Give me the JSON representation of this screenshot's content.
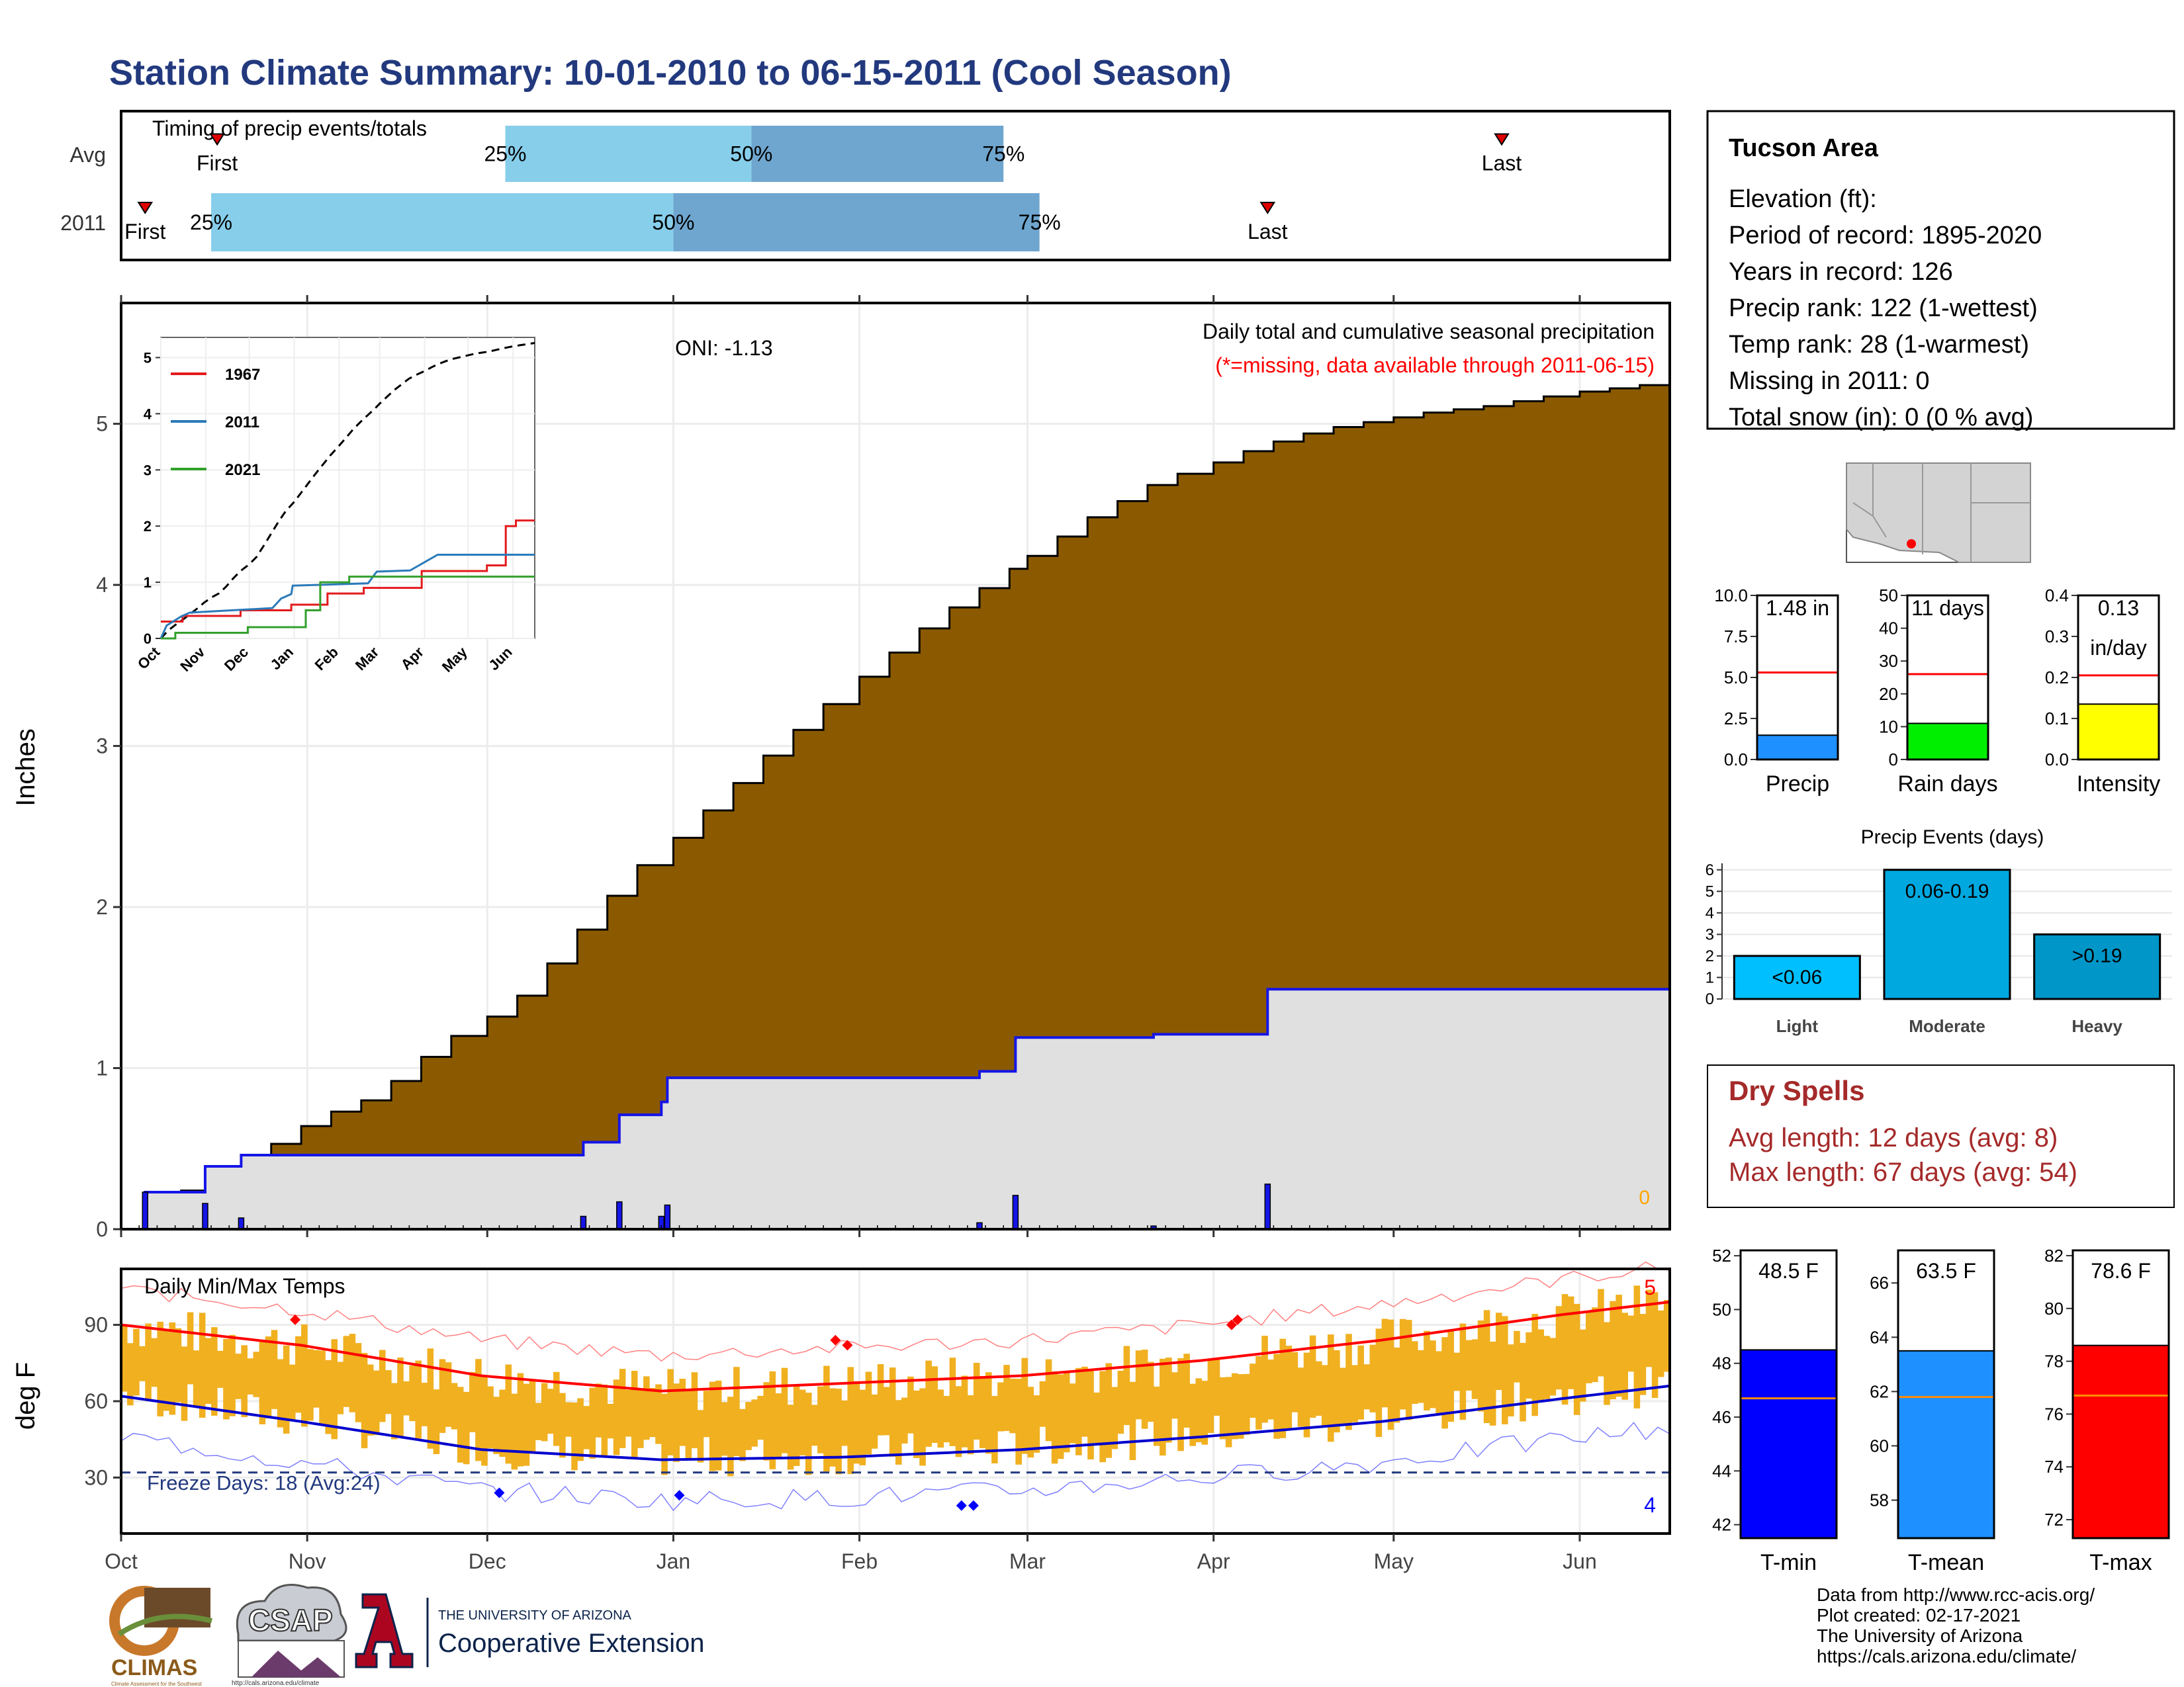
{
  "title": "Station Climate Summary: 10-01-2010 to 06-15-2011 (Cool Season)",
  "colors": {
    "title": "#22397e",
    "brown": "#8b5a00",
    "grey_fill": "#e0e0e0",
    "blue": "#1515e8",
    "light_blue": "#87ceeb",
    "mid_blue": "#6fa6cf",
    "red": "#ff0000",
    "orange": "#f0b020",
    "dry_red": "#a52a2a"
  },
  "timing": {
    "label": "Timing of precip events/totals",
    "rows": [
      {
        "name": "Avg",
        "first": "First",
        "last": "Last",
        "p25": "25%",
        "p50": "50%",
        "p75": "75%",
        "first_day": 16,
        "last_day": 230,
        "p25_day": 64,
        "p50_day": 105,
        "p75_day": 147
      },
      {
        "name": "2011",
        "first": "First",
        "last": "Last",
        "p25": "25%",
        "p50": "50%",
        "p75": "75%",
        "first_day": 4,
        "last_day": 191,
        "p25_day": 15,
        "p50_day": 92,
        "p75_day": 153
      }
    ]
  },
  "month_ticks": [
    "Oct",
    "Nov",
    "Dec",
    "Jan",
    "Feb",
    "Mar",
    "Apr",
    "May",
    "Jun"
  ],
  "month_days": [
    0,
    31,
    61,
    92,
    123,
    151,
    182,
    212,
    243
  ],
  "total_days": 258,
  "main": {
    "ylabel": "Inches",
    "yticks": [
      "0",
      "1",
      "2",
      "3",
      "4",
      "5"
    ],
    "ymax": 5.75,
    "oni": "ONI: -1.13",
    "caption": "Daily total and cumulative seasonal precipitation",
    "missing_note": "(*=missing, data available through 2011-06-15)",
    "missing_count": "0",
    "avg_cum_day": [
      0,
      5,
      10,
      15,
      20,
      25,
      30,
      35,
      40,
      45,
      50,
      55,
      61,
      66,
      71,
      76,
      81,
      86,
      92,
      97,
      102,
      107,
      112,
      117,
      123,
      128,
      133,
      138,
      143,
      148,
      151,
      156,
      161,
      166,
      171,
      176,
      182,
      187,
      192,
      197,
      202,
      207,
      212,
      217,
      222,
      227,
      232,
      237,
      243,
      248,
      253,
      258
    ],
    "avg_cum_val": [
      0,
      0.14,
      0.24,
      0.33,
      0.43,
      0.53,
      0.64,
      0.73,
      0.8,
      0.92,
      1.07,
      1.2,
      1.32,
      1.45,
      1.65,
      1.86,
      2.07,
      2.26,
      2.43,
      2.6,
      2.77,
      2.94,
      3.1,
      3.26,
      3.43,
      3.58,
      3.73,
      3.86,
      3.98,
      4.1,
      4.18,
      4.3,
      4.42,
      4.52,
      4.62,
      4.69,
      4.76,
      4.83,
      4.89,
      4.94,
      4.98,
      5.01,
      5.04,
      5.07,
      5.09,
      5.11,
      5.14,
      5.17,
      5.2,
      5.22,
      5.24,
      5.26
    ],
    "events": [
      {
        "day": 4,
        "val": 0.23
      },
      {
        "day": 14,
        "val": 0.16
      },
      {
        "day": 20,
        "val": 0.07
      },
      {
        "day": 77,
        "val": 0.08
      },
      {
        "day": 83,
        "val": 0.17
      },
      {
        "day": 90,
        "val": 0.08
      },
      {
        "day": 91,
        "val": 0.15
      },
      {
        "day": 143,
        "val": 0.04
      },
      {
        "day": 149,
        "val": 0.21
      },
      {
        "day": 172,
        "val": 0.02
      },
      {
        "day": 191,
        "val": 0.28
      }
    ]
  },
  "inset": {
    "yticks": [
      "0",
      "1",
      "2",
      "3",
      "4",
      "5"
    ],
    "xticks": [
      "Oct",
      "Nov",
      "Dec",
      "Jan",
      "Feb",
      "Mar",
      "Apr",
      "May",
      "Jun"
    ],
    "series": [
      {
        "name": "1967",
        "color": "#e31a1c",
        "points": [
          [
            0,
            0.3
          ],
          [
            15,
            0.3
          ],
          [
            15,
            0.4
          ],
          [
            55,
            0.4
          ],
          [
            55,
            0.5
          ],
          [
            90,
            0.5
          ],
          [
            90,
            0.6
          ],
          [
            115,
            0.6
          ],
          [
            115,
            0.8
          ],
          [
            140,
            0.8
          ],
          [
            140,
            0.9
          ],
          [
            180,
            0.9
          ],
          [
            180,
            1.2
          ],
          [
            225,
            1.2
          ],
          [
            225,
            1.3
          ],
          [
            238,
            1.3
          ],
          [
            238,
            2.0
          ],
          [
            245,
            2.0
          ],
          [
            245,
            2.1
          ],
          [
            258,
            2.1
          ]
        ]
      },
      {
        "name": "2011",
        "color": "#2b7bb9",
        "points": [
          [
            0,
            0
          ],
          [
            4,
            0.23
          ],
          [
            14,
            0.39
          ],
          [
            20,
            0.46
          ],
          [
            77,
            0.54
          ],
          [
            83,
            0.71
          ],
          [
            90,
            0.79
          ],
          [
            91,
            0.94
          ],
          [
            143,
            0.98
          ],
          [
            149,
            1.19
          ],
          [
            172,
            1.21
          ],
          [
            191,
            1.49
          ],
          [
            258,
            1.49
          ]
        ]
      },
      {
        "name": "2021",
        "color": "#33a02c",
        "points": [
          [
            0,
            0
          ],
          [
            10,
            0
          ],
          [
            10,
            0.1
          ],
          [
            60,
            0.1
          ],
          [
            60,
            0.2
          ],
          [
            100,
            0.2
          ],
          [
            100,
            0.5
          ],
          [
            110,
            0.5
          ],
          [
            110,
            1.0
          ],
          [
            130,
            1.0
          ],
          [
            130,
            1.1
          ],
          [
            258,
            1.1
          ]
        ]
      }
    ]
  },
  "temps": {
    "label": "Daily Min/Max Temps",
    "ylabel": "deg F",
    "yticks": [
      "30",
      "60",
      "90"
    ],
    "freeze_label": "Freeze Days: 18 (Avg:24)",
    "record_high_count": "5",
    "record_low_count": "4",
    "normal_max_day": [
      0,
      30,
      60,
      90,
      120,
      150,
      180,
      210,
      240,
      258
    ],
    "normal_max_val": [
      90,
      82,
      70,
      64,
      67,
      70,
      76,
      84,
      94,
      99
    ],
    "normal_min_day": [
      0,
      30,
      60,
      90,
      120,
      150,
      180,
      210,
      240,
      258
    ],
    "normal_min_val": [
      62,
      52,
      41,
      37,
      38,
      41,
      46,
      52,
      61,
      66
    ]
  },
  "station": {
    "name": "Tucson Area",
    "lines": [
      "Elevation (ft):",
      "Period of record: 1895-2020",
      "Years in record: 126",
      "Precip rank: 122 (1-wettest)",
      "Temp rank: 28 (1-warmest)",
      "Missing in 2011: 0",
      "Total snow (in): 0 (0 % avg)"
    ]
  },
  "small_bars": [
    {
      "name": "Precip",
      "value_label": "1.48 in",
      "value": 1.48,
      "avg": 5.3,
      "ymax": 10,
      "ticks": [
        "0.0",
        "2.5",
        "5.0",
        "7.5",
        "10.0"
      ],
      "tick_vals": [
        0,
        2.5,
        5,
        7.5,
        10
      ],
      "color": "#1e90ff"
    },
    {
      "name": "Rain days",
      "value_label": "11 days",
      "value": 11,
      "avg": 26,
      "ymax": 50,
      "ticks": [
        "0",
        "10",
        "20",
        "30",
        "40",
        "50"
      ],
      "tick_vals": [
        0,
        10,
        20,
        30,
        40,
        50
      ],
      "color": "#00ee00"
    },
    {
      "name": "Intensity",
      "value_label": "0.13",
      "value_label2": "in/day",
      "value": 0.135,
      "avg": 0.205,
      "ymax": 0.4,
      "ticks": [
        "0.0",
        "0.1",
        "0.2",
        "0.3",
        "0.4"
      ],
      "tick_vals": [
        0,
        0.1,
        0.2,
        0.3,
        0.4
      ],
      "color": "#ffff00"
    }
  ],
  "events_chart": {
    "title": "Precip Events (days)",
    "type": "bar",
    "categories": [
      "Light",
      "Moderate",
      "Heavy"
    ],
    "bar_labels": [
      "<0.06",
      "0.06-0.19",
      ">0.19"
    ],
    "values": [
      2,
      6,
      3
    ],
    "colors": [
      "#00bfff",
      "#00a8e0",
      "#0096c8"
    ],
    "yticks": [
      "0",
      "1",
      "2",
      "3",
      "4",
      "5",
      "6"
    ]
  },
  "dry_spells": {
    "title": "Dry Spells",
    "avg": "Avg length: 12 days (avg: 8)",
    "max": "Max length: 67 days (avg: 54)"
  },
  "temp_bars": [
    {
      "name": "T-min",
      "value_label": "48.5 F",
      "value": 48.5,
      "avg": 46.7,
      "ymin": 41.5,
      "ymax": 52.2,
      "ticks": [
        "42",
        "44",
        "46",
        "48",
        "50",
        "52"
      ],
      "tick_vals": [
        42,
        44,
        46,
        48,
        50,
        52
      ],
      "color": "#0000ff"
    },
    {
      "name": "T-mean",
      "value_label": "63.5 F",
      "value": 63.5,
      "avg": 61.8,
      "ymin": 56.6,
      "ymax": 67.2,
      "ticks": [
        "58",
        "60",
        "62",
        "64",
        "66"
      ],
      "tick_vals": [
        58,
        60,
        62,
        64,
        66
      ],
      "color": "#1e90ff"
    },
    {
      "name": "T-max",
      "value_label": "78.6 F",
      "value": 78.6,
      "avg": 76.7,
      "ymin": 71.3,
      "ymax": 82.2,
      "ticks": [
        "72",
        "74",
        "76",
        "78",
        "80",
        "82"
      ],
      "tick_vals": [
        72,
        74,
        76,
        78,
        80,
        82
      ],
      "color": "#ff0000"
    }
  ],
  "credits": [
    "Data from http://www.rcc-acis.org/",
    "Plot created: 02-17-2021",
    "The University of Arizona",
    "https://cals.arizona.edu/climate/"
  ],
  "logos": {
    "climas": "CLIMAS",
    "climas_sub": "Climate Assessment for the Southwest",
    "csap": "CSAP",
    "csap_url": "http://cals.arizona.edu/climate",
    "ua_top": "THE UNIVERSITY OF ARIZONA",
    "ua_bottom": "Cooperative Extension"
  }
}
